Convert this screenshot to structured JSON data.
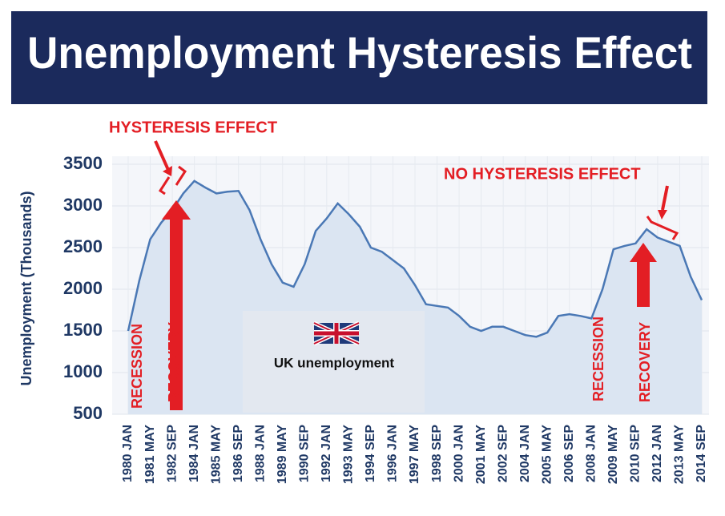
{
  "chart_data": {
    "type": "area",
    "title": "Unemployment Hysteresis Effect",
    "y_label": "Unemployment (Thousands)",
    "categories": [
      "1980 JAN",
      null,
      "1981 MAY",
      null,
      "1982 SEP",
      null,
      "1984 JAN",
      null,
      "1985 MAY",
      null,
      "1986 SEP",
      null,
      "1988 JAN",
      null,
      "1989 MAY",
      null,
      "1990 SEP",
      null,
      "1992 JAN",
      null,
      "1993 MAY",
      null,
      "1994 SEP",
      null,
      "1996 JAN",
      null,
      "1997 MAY",
      null,
      "1998 SEP",
      null,
      "2000 JAN",
      null,
      "2001 MAY",
      null,
      "2002 SEP",
      null,
      "2004 JAN",
      null,
      "2005 MAY",
      null,
      "2006 SEP",
      null,
      "2008 JAN",
      null,
      "2009 MAY",
      null,
      "2010 SEP",
      null,
      "2012 JAN",
      null,
      "2013 MAY",
      null,
      "2014 SEP"
    ],
    "values": [
      1500,
      2100,
      2600,
      2800,
      2950,
      3150,
      3300,
      3220,
      3150,
      3170,
      3180,
      2950,
      2600,
      2300,
      2080,
      2030,
      2300,
      2700,
      2850,
      3030,
      2900,
      2750,
      2500,
      2450,
      2350,
      2250,
      2050,
      1820,
      1800,
      1780,
      1680,
      1550,
      1500,
      1550,
      1550,
      1500,
      1450,
      1430,
      1480,
      1680,
      1700,
      1680,
      1650,
      2000,
      2480,
      2520,
      2550,
      2720,
      2620,
      2570,
      2520,
      2150,
      1870
    ],
    "color": "#4a78b5",
    "fill": "#dbe5f2",
    "ylim": [
      500,
      3500
    ],
    "yticks": [
      500,
      1000,
      1500,
      2000,
      2500,
      3000,
      3500
    ],
    "grid": true,
    "annotations": [
      "HYSTERESIS EFFECT",
      "NO HYSTERESIS EFFECT",
      "RECESSION",
      "RECOVERY",
      "RECESSION",
      "RECOVERY",
      "UK unemployment"
    ]
  }
}
